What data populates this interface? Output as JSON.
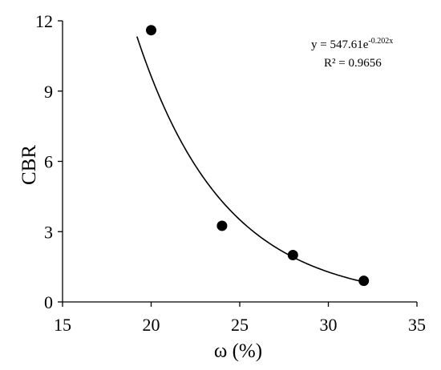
{
  "chart_data": {
    "type": "scatter",
    "xlabel": "ω (%)",
    "ylabel": "CBR",
    "xlim": [
      15,
      35
    ],
    "ylim": [
      0,
      12
    ],
    "x_ticks": [
      15,
      20,
      25,
      30,
      35
    ],
    "y_ticks": [
      0,
      3,
      6,
      9,
      12
    ],
    "x_tick_labels": [
      "15",
      "20",
      "25",
      "30",
      "35"
    ],
    "y_tick_labels": [
      "0",
      "3",
      "6",
      "9",
      "12"
    ],
    "grid": false,
    "legend": "none",
    "points": [
      {
        "x": 20.0,
        "y": 11.6
      },
      {
        "x": 24.0,
        "y": 3.25
      },
      {
        "x": 28.0,
        "y": 2.0
      },
      {
        "x": 32.0,
        "y": 0.9
      }
    ],
    "trendline": {
      "type": "exponential",
      "a": 547.61,
      "b": -0.202,
      "x_range": [
        19.2,
        32.0
      ]
    },
    "annotation": {
      "equation_prefix": "y = 547.61e",
      "equation_exponent": "-0.202x",
      "r_squared": "R² = 0.9656"
    },
    "colors": {
      "marker": "#000000",
      "line": "#000000",
      "axis": "#000000"
    }
  }
}
